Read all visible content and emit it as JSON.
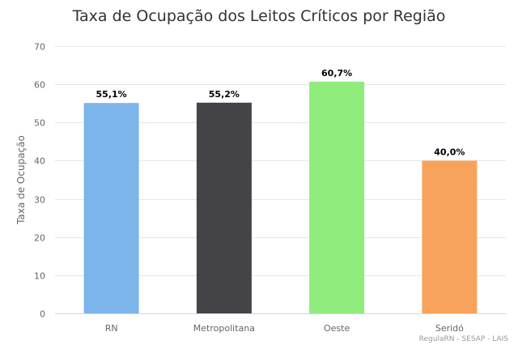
{
  "chart_data": {
    "type": "bar",
    "title": "Taxa de Ocupação dos Leitos Críticos por Região",
    "ylabel": "Taxa de Ocupação",
    "xlabel": "",
    "categories": [
      "RN",
      "Metropolitana",
      "Oeste",
      "Seridó"
    ],
    "values": [
      55.1,
      55.2,
      60.7,
      40.0
    ],
    "data_labels": [
      "55,1%",
      "55,2%",
      "60,7%",
      "40,0%"
    ],
    "colors": [
      "#7cb5ec",
      "#434348",
      "#90ed7d",
      "#f7a35c"
    ],
    "ylim": [
      0,
      70
    ],
    "yticks": [
      "0",
      "10",
      "20",
      "30",
      "40",
      "50",
      "60",
      "70"
    ],
    "grid": true,
    "legend": "none"
  },
  "credits": "RegulaRN - SESAP - LAIS"
}
